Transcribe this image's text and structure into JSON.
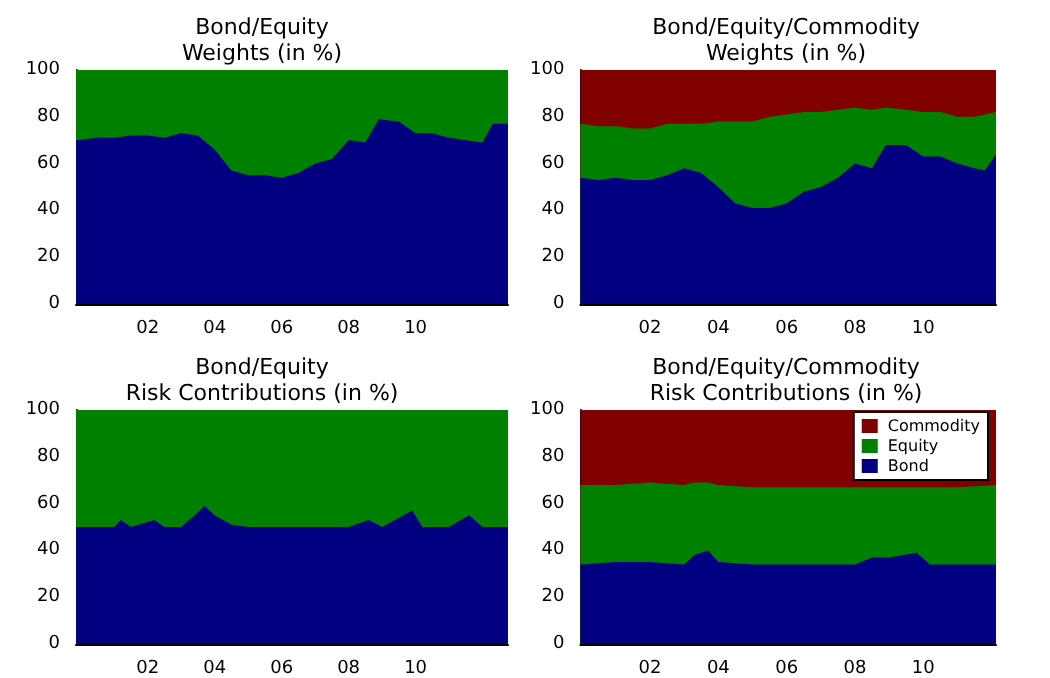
{
  "chart_data": [
    {
      "type": "area",
      "title": "Bond/Equity\nWeights (in %)",
      "stacked": true,
      "legend": false,
      "x": [
        1999.86,
        2000.5,
        2001,
        2001.5,
        2002,
        2002.5,
        2003,
        2003.5,
        2004,
        2004.5,
        2005,
        2005.5,
        2006,
        2006.5,
        2007,
        2007.5,
        2008,
        2008.5,
        2008.9,
        2009.5,
        2010,
        2010.5,
        2011,
        2011.5,
        2012,
        2012.3,
        2012.76
      ],
      "series": [
        {
          "color": "#000080",
          "values": [
            70,
            71,
            71,
            72,
            72,
            71,
            73,
            72,
            66,
            57,
            55,
            55,
            54,
            56,
            60,
            62,
            70,
            69,
            79,
            78,
            73,
            73,
            71,
            70,
            69,
            77,
            77
          ]
        },
        {
          "color": "#008000",
          "values": [
            30,
            29,
            29,
            28,
            28,
            29,
            27,
            28,
            34,
            43,
            45,
            45,
            46,
            44,
            40,
            38,
            30,
            31,
            21,
            22,
            27,
            27,
            29,
            30,
            31,
            23,
            23
          ]
        }
      ],
      "xlim": [
        1999.86,
        2012.76
      ],
      "xticks": [
        {
          "value": 2002,
          "label": "02"
        },
        {
          "value": 2004,
          "label": "04"
        },
        {
          "value": 2006,
          "label": "06"
        },
        {
          "value": 2008,
          "label": "08"
        },
        {
          "value": 2010,
          "label": "10"
        }
      ],
      "ylim": [
        0,
        100
      ],
      "yticks": [
        0,
        20,
        40,
        60,
        80,
        100
      ]
    },
    {
      "type": "area",
      "title": "Bond/Equity/Commodity\nWeights (in %)",
      "stacked": true,
      "legend": false,
      "x": [
        1999.96,
        2000.5,
        2001,
        2001.5,
        2002,
        2002.5,
        2003,
        2003.5,
        2004,
        2004.5,
        2005,
        2005.5,
        2006,
        2006.5,
        2007,
        2007.5,
        2008,
        2008.5,
        2008.9,
        2009.5,
        2010,
        2010.5,
        2011,
        2011.5,
        2011.8,
        2012.13
      ],
      "series": [
        {
          "color": "#000080",
          "values": [
            54,
            53,
            54,
            53,
            53,
            55,
            58,
            56,
            50,
            43,
            41,
            41,
            43,
            48,
            50,
            54,
            60,
            58,
            68,
            68,
            63,
            63,
            60,
            58,
            57,
            64
          ]
        },
        {
          "color": "#008000",
          "values": [
            23,
            23,
            22,
            22,
            22,
            22,
            19,
            21,
            28,
            35,
            37,
            39,
            38,
            34,
            32,
            29,
            24,
            25,
            16,
            15,
            19,
            19,
            20,
            22,
            24,
            18
          ]
        },
        {
          "color": "#800000",
          "values": [
            23,
            24,
            24,
            25,
            25,
            23,
            23,
            23,
            22,
            22,
            22,
            20,
            19,
            18,
            18,
            17,
            16,
            17,
            16,
            17,
            18,
            18,
            20,
            20,
            19,
            18
          ]
        }
      ],
      "xlim": [
        1999.96,
        2012.13
      ],
      "xticks": [
        {
          "value": 2002,
          "label": "02"
        },
        {
          "value": 2004,
          "label": "04"
        },
        {
          "value": 2006,
          "label": "06"
        },
        {
          "value": 2008,
          "label": "08"
        },
        {
          "value": 2010,
          "label": "10"
        }
      ],
      "ylim": [
        0,
        100
      ],
      "yticks": [
        0,
        20,
        40,
        60,
        80,
        100
      ]
    },
    {
      "type": "area",
      "title": "Bond/Equity\nRisk Contributions (in %)",
      "stacked": true,
      "legend": false,
      "x": [
        1999.86,
        2001,
        2001.2,
        2001.5,
        2002.2,
        2002.5,
        2003,
        2003.4,
        2003.7,
        2004,
        2004.5,
        2005,
        2006,
        2007,
        2008,
        2008.6,
        2009,
        2009.9,
        2010.2,
        2011,
        2011.6,
        2012,
        2012.76
      ],
      "series": [
        {
          "color": "#000080",
          "values": [
            50,
            50,
            53,
            50,
            53,
            50,
            50,
            55,
            59,
            55,
            51,
            50,
            50,
            50,
            50,
            53,
            50,
            57,
            50,
            50,
            55,
            50,
            50
          ]
        },
        {
          "color": "#008000",
          "values": [
            50,
            50,
            47,
            50,
            47,
            50,
            50,
            45,
            41,
            45,
            49,
            50,
            50,
            50,
            50,
            47,
            50,
            43,
            50,
            50,
            45,
            50,
            50
          ]
        }
      ],
      "xlim": [
        1999.86,
        2012.76
      ],
      "xticks": [
        {
          "value": 2002,
          "label": "02"
        },
        {
          "value": 2004,
          "label": "04"
        },
        {
          "value": 2006,
          "label": "06"
        },
        {
          "value": 2008,
          "label": "08"
        },
        {
          "value": 2010,
          "label": "10"
        }
      ],
      "ylim": [
        0,
        100
      ],
      "yticks": [
        0,
        20,
        40,
        60,
        80,
        100
      ]
    },
    {
      "type": "area",
      "title": "Bond/Equity/Commodity\nRisk Contributions (in %)",
      "stacked": true,
      "legend": "top right",
      "x": [
        1999.96,
        2001,
        2002,
        2003,
        2003.3,
        2003.7,
        2004,
        2005,
        2006,
        2007,
        2008,
        2008.5,
        2009,
        2009.8,
        2010.2,
        2011,
        2012.13
      ],
      "series": [
        {
          "name": "Bond",
          "color": "#000080",
          "values": [
            34,
            35,
            35,
            34,
            38,
            40,
            35,
            34,
            34,
            34,
            34,
            37,
            37,
            39,
            34,
            34,
            34
          ]
        },
        {
          "name": "Equity",
          "color": "#008000",
          "values": [
            34,
            33,
            34,
            34,
            31,
            29,
            33,
            33,
            33,
            33,
            33,
            30,
            30,
            28,
            33,
            33,
            34
          ]
        },
        {
          "name": "Commodity",
          "color": "#800000",
          "values": [
            32,
            32,
            31,
            32,
            31,
            31,
            32,
            33,
            33,
            33,
            33,
            33,
            33,
            33,
            33,
            33,
            32
          ]
        }
      ],
      "xlim": [
        1999.96,
        2012.13
      ],
      "xticks": [
        {
          "value": 2002,
          "label": "02"
        },
        {
          "value": 2004,
          "label": "04"
        },
        {
          "value": 2006,
          "label": "06"
        },
        {
          "value": 2008,
          "label": "08"
        },
        {
          "value": 2010,
          "label": "10"
        }
      ],
      "ylim": [
        0,
        100
      ],
      "yticks": [
        0,
        20,
        40,
        60,
        80,
        100
      ]
    }
  ]
}
